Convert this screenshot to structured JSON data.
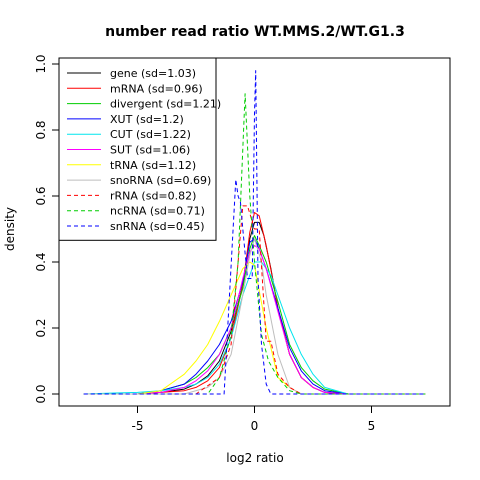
{
  "chart_data": {
    "type": "line",
    "title": "number read ratio WT.MMS.2/WT.G1.3",
    "xlabel": "log2 ratio",
    "ylabel": "density",
    "xlim": [
      -7.5,
      7.5
    ],
    "ylim": [
      0,
      1.0
    ],
    "x_ticks": [
      -5,
      0,
      5
    ],
    "x_tick_labels": [
      "-5",
      "0",
      "5"
    ],
    "y_ticks": [
      0,
      0.2,
      0.4,
      0.6,
      0.8,
      1.0
    ],
    "y_tick_labels": [
      "0.0",
      "0.2",
      "0.4",
      "0.6",
      "0.8",
      "1.0"
    ],
    "grid": false,
    "legend_position": "top-left",
    "series": [
      {
        "name": "gene (sd=1.03)",
        "color": "#000000",
        "dash": "solid",
        "x": [
          -7.3,
          -5,
          -4,
          -3,
          -2.5,
          -2,
          -1.5,
          -1,
          -0.5,
          -0.2,
          0,
          0.2,
          0.4,
          0.7,
          1,
          1.5,
          2,
          2.5,
          3,
          4,
          7.3
        ],
        "y": [
          0,
          0,
          0.005,
          0.015,
          0.03,
          0.055,
          0.1,
          0.19,
          0.33,
          0.47,
          0.52,
          0.52,
          0.48,
          0.38,
          0.26,
          0.12,
          0.05,
          0.02,
          0.005,
          0,
          0
        ]
      },
      {
        "name": "mRNA (sd=0.96)",
        "color": "#ff0000",
        "dash": "solid",
        "x": [
          -7.3,
          -5,
          -4,
          -3,
          -2.5,
          -2,
          -1.5,
          -1,
          -0.5,
          -0.2,
          0,
          0.2,
          0.5,
          0.8,
          1,
          1.5,
          2,
          2.5,
          3,
          4,
          7.3
        ],
        "y": [
          0,
          0,
          0.005,
          0.01,
          0.02,
          0.04,
          0.08,
          0.17,
          0.33,
          0.49,
          0.55,
          0.54,
          0.45,
          0.34,
          0.26,
          0.12,
          0.05,
          0.02,
          0.005,
          0,
          0
        ]
      },
      {
        "name": "divergent (sd=1.21)",
        "color": "#00cd00",
        "dash": "solid",
        "x": [
          -7.3,
          -5,
          -4,
          -3,
          -2.5,
          -2,
          -1.5,
          -1,
          -0.5,
          -0.2,
          0,
          0.2,
          0.5,
          1,
          1.5,
          2,
          2.5,
          3,
          4,
          7.3
        ],
        "y": [
          0,
          0,
          0.01,
          0.03,
          0.05,
          0.08,
          0.12,
          0.2,
          0.32,
          0.44,
          0.48,
          0.45,
          0.4,
          0.28,
          0.15,
          0.08,
          0.04,
          0.015,
          0,
          0
        ]
      },
      {
        "name": "XUT (sd=1.2)",
        "color": "#0000ff",
        "dash": "solid",
        "x": [
          -7.3,
          -5,
          -4,
          -3,
          -2.5,
          -2,
          -1.5,
          -1,
          -0.5,
          -0.2,
          0,
          0.2,
          0.5,
          1,
          1.5,
          2,
          2.5,
          3,
          4,
          7.3
        ],
        "y": [
          0,
          0,
          0.01,
          0.03,
          0.06,
          0.1,
          0.15,
          0.22,
          0.34,
          0.46,
          0.47,
          0.44,
          0.38,
          0.26,
          0.14,
          0.07,
          0.03,
          0.01,
          0,
          0
        ]
      },
      {
        "name": "CUT (sd=1.22)",
        "color": "#00e5ee",
        "dash": "solid",
        "x": [
          -7.3,
          -6,
          -5,
          -4,
          -3,
          -2.5,
          -2,
          -1.5,
          -1,
          -0.5,
          0,
          0.3,
          0.7,
          1,
          1.5,
          2,
          2.5,
          3,
          4,
          7.3
        ],
        "y": [
          0,
          0.003,
          0.005,
          0.01,
          0.02,
          0.03,
          0.05,
          0.09,
          0.17,
          0.3,
          0.4,
          0.4,
          0.36,
          0.3,
          0.2,
          0.12,
          0.06,
          0.02,
          0,
          0
        ]
      },
      {
        "name": "SUT (sd=1.06)",
        "color": "#ff00ff",
        "dash": "solid",
        "x": [
          -7.3,
          -5,
          -4,
          -3,
          -2.5,
          -2,
          -1.5,
          -1,
          -0.5,
          -0.2,
          0,
          0.2,
          0.5,
          1,
          1.5,
          2,
          2.5,
          3,
          4,
          7.3
        ],
        "y": [
          0,
          0,
          0.005,
          0.02,
          0.04,
          0.07,
          0.12,
          0.2,
          0.35,
          0.43,
          0.45,
          0.44,
          0.38,
          0.25,
          0.12,
          0.05,
          0.02,
          0.005,
          0,
          0
        ]
      },
      {
        "name": "tRNA (sd=1.12)",
        "color": "#ffff00",
        "dash": "solid",
        "x": [
          -7.3,
          -5,
          -4,
          -3,
          -2.5,
          -2,
          -1.5,
          -1,
          -0.5,
          -0.2,
          0,
          0.5,
          1,
          1.5,
          2,
          3,
          7.3
        ],
        "y": [
          0,
          0,
          0.01,
          0.06,
          0.1,
          0.15,
          0.22,
          0.3,
          0.38,
          0.4,
          0.39,
          0.2,
          0.05,
          0.02,
          0,
          0,
          0
        ]
      },
      {
        "name": "snoRNA (sd=0.69)",
        "color": "#bebebe",
        "dash": "solid",
        "x": [
          -7.3,
          -3,
          -2,
          -1.5,
          -1,
          -0.5,
          -0.2,
          0,
          0.3,
          0.5,
          1,
          1.5,
          2,
          7.3
        ],
        "y": [
          0,
          0,
          0.02,
          0.05,
          0.12,
          0.3,
          0.42,
          0.47,
          0.4,
          0.3,
          0.12,
          0.02,
          0,
          0
        ]
      },
      {
        "name": "rRNA (sd=0.82)",
        "color": "#ff0000",
        "dash": "dashed",
        "x": [
          -7.3,
          -2.5,
          -1.5,
          -1,
          -0.7,
          -0.5,
          -0.3,
          0,
          0.2,
          0.5,
          0.7,
          1,
          1.5,
          2,
          7.3
        ],
        "y": [
          0,
          0,
          0.05,
          0.15,
          0.4,
          0.57,
          0.57,
          0.5,
          0.5,
          0.16,
          0.16,
          0.06,
          0.02,
          0,
          0
        ]
      },
      {
        "name": "ncRNA (sd=0.71)",
        "color": "#00cd00",
        "dash": "dashed",
        "x": [
          -7.3,
          -2,
          -1.5,
          -1,
          -0.7,
          -0.4,
          -0.2,
          0,
          0.3,
          0.6,
          1,
          1.5,
          2,
          7.3
        ],
        "y": [
          0,
          0,
          0.05,
          0.18,
          0.4,
          0.91,
          0.6,
          0.4,
          0.18,
          0.1,
          0.05,
          0.01,
          0,
          0
        ]
      },
      {
        "name": "snRNA (sd=0.45)",
        "color": "#0000ff",
        "dash": "dashed",
        "x": [
          -7.3,
          -1.3,
          -0.8,
          -0.7,
          -0.6,
          -0.5,
          -0.3,
          -0.1,
          0,
          0.05,
          0.15,
          0.3,
          0.5,
          0.7,
          7.3
        ],
        "y": [
          0,
          0,
          0.65,
          0.6,
          0.58,
          0.5,
          0.35,
          0.35,
          0.85,
          0.98,
          0.35,
          0.15,
          0.03,
          0,
          0
        ]
      }
    ]
  }
}
